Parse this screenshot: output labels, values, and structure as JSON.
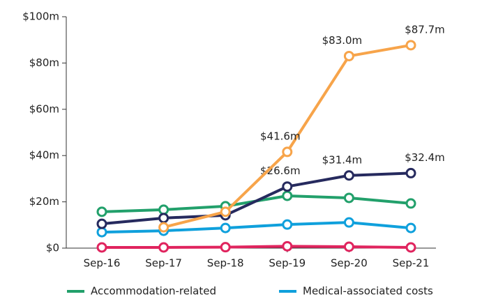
{
  "chart_data": {
    "type": "line",
    "categories": [
      "Sep-16",
      "Sep-17",
      "Sep-18",
      "Sep-19",
      "Sep-20",
      "Sep-21"
    ],
    "ylim": [
      0,
      100
    ],
    "yticks": [
      {
        "value": 0,
        "label": "$0"
      },
      {
        "value": 20,
        "label": "$20m"
      },
      {
        "value": 40,
        "label": "$40m"
      },
      {
        "value": 60,
        "label": "$60m"
      },
      {
        "value": 80,
        "label": "$80m"
      },
      {
        "value": 100,
        "label": "$100m"
      }
    ],
    "grid": false,
    "series": [
      {
        "color": "#e0245e",
        "values": [
          0.3,
          0.3,
          0.4,
          0.8,
          0.6,
          0.3
        ]
      },
      {
        "color": "#0fa0dc",
        "name": "Medical-associated costs",
        "values": [
          6.9,
          7.5,
          8.7,
          10.2,
          11.1,
          8.7
        ]
      },
      {
        "color": "#22a06b",
        "name": "Accommodation-related",
        "values": [
          15.7,
          16.6,
          18.1,
          22.6,
          21.7,
          19.3
        ]
      },
      {
        "color": "#262a5e",
        "values": [
          10.5,
          13.0,
          14.2,
          26.6,
          31.4,
          32.4
        ],
        "value_labels": [
          null,
          null,
          null,
          "$26.6m",
          "$31.4m",
          "$32.4m"
        ]
      },
      {
        "color": "#f7a44a",
        "values": [
          null,
          9.0,
          15.7,
          41.6,
          83.0,
          87.7
        ],
        "value_labels": [
          null,
          null,
          null,
          "$41.6m",
          "$83.0m",
          "$87.7m"
        ]
      }
    ]
  }
}
